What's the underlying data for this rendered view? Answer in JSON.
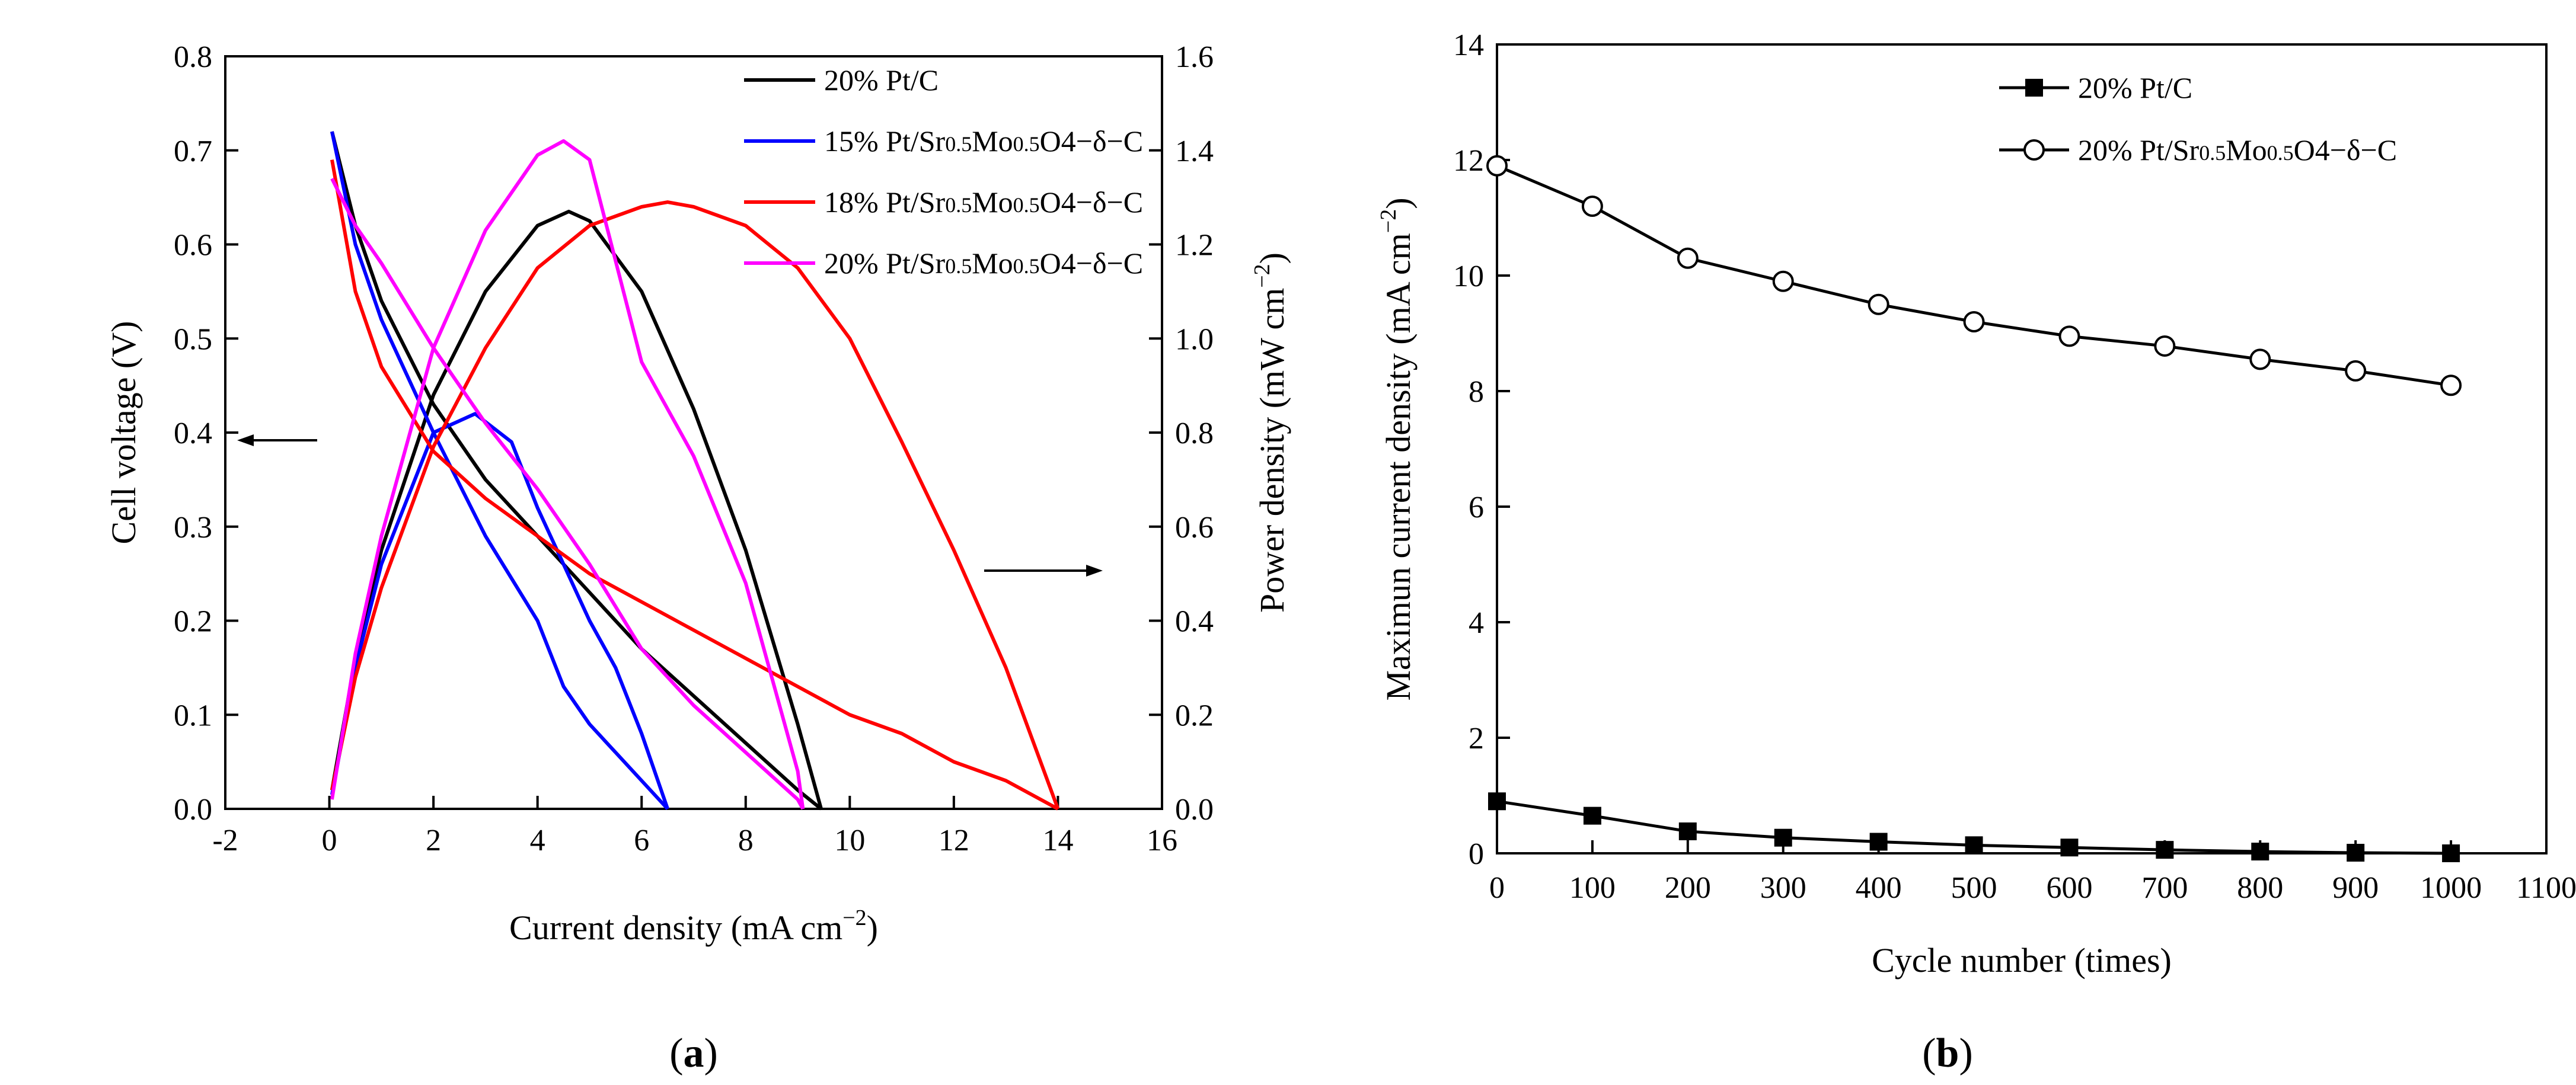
{
  "chart_data": [
    {
      "id": "a",
      "type": "line",
      "panel_label": "(a)",
      "panel_letter": "a",
      "xlabel": "Current density (mA cm",
      "xlabel_sup": "−2",
      "xlabel_close": ")",
      "ylabel_left": "Cell voltage (V)",
      "ylabel_right": "Power density (mW cm",
      "ylabel_right_sup": "−2",
      "ylabel_right_close": ")",
      "xlim": [
        -2,
        16
      ],
      "ylim_left": [
        0,
        0.8
      ],
      "ylim_right": [
        0,
        1.6
      ],
      "xticks": [
        "-2",
        "0",
        "2",
        "4",
        "6",
        "8",
        "10",
        "12",
        "14",
        "16"
      ],
      "yticks_left": [
        "0.0",
        "0.1",
        "0.2",
        "0.3",
        "0.4",
        "0.5",
        "0.6",
        "0.7",
        "0.8"
      ],
      "yticks_right": [
        "0.0",
        "0.2",
        "0.4",
        "0.6",
        "0.8",
        "1.0",
        "1.2",
        "1.4",
        "1.6"
      ],
      "legend_position": "top-right",
      "annotations": [
        "arrow pointing left to voltage axis",
        "arrow pointing right to power axis"
      ],
      "series": [
        {
          "name": "20% Pt/C",
          "legend_main": "20% Pt/C",
          "legend_parts": [],
          "color": "#000000",
          "voltage": [
            [
              0.05,
              0.72
            ],
            [
              0.5,
              0.62
            ],
            [
              1,
              0.54
            ],
            [
              2,
              0.43
            ],
            [
              3,
              0.35
            ],
            [
              4,
              0.29
            ],
            [
              5,
              0.23
            ],
            [
              6,
              0.17
            ],
            [
              7,
              0.12
            ],
            [
              8,
              0.07
            ],
            [
              9,
              0.02
            ],
            [
              9.45,
              0.0
            ]
          ],
          "power": [
            [
              0.05,
              0.04
            ],
            [
              0.5,
              0.32
            ],
            [
              1,
              0.55
            ],
            [
              2,
              0.88
            ],
            [
              3,
              1.1
            ],
            [
              4,
              1.24
            ],
            [
              4.6,
              1.27
            ],
            [
              5,
              1.25
            ],
            [
              6,
              1.1
            ],
            [
              7,
              0.85
            ],
            [
              8,
              0.55
            ],
            [
              9,
              0.18
            ],
            [
              9.45,
              0.0
            ]
          ]
        },
        {
          "name": "15% Pt/Sr0.5Mo0.5O4−δ−C",
          "legend_main": "15% Pt/Sr",
          "legend_parts": [
            "0.5",
            "Mo",
            "0.5",
            "O4−δ−C"
          ],
          "color": "#0000ff",
          "voltage": [
            [
              0.05,
              0.72
            ],
            [
              0.5,
              0.6
            ],
            [
              1,
              0.52
            ],
            [
              2,
              0.4
            ],
            [
              3,
              0.29
            ],
            [
              4,
              0.2
            ],
            [
              4.5,
              0.13
            ],
            [
              5,
              0.09
            ],
            [
              5.5,
              0.06
            ],
            [
              6,
              0.03
            ],
            [
              6.5,
              0.0
            ]
          ],
          "power": [
            [
              0.05,
              0.03
            ],
            [
              0.5,
              0.3
            ],
            [
              1,
              0.52
            ],
            [
              2,
              0.8
            ],
            [
              2.8,
              0.84
            ],
            [
              3.5,
              0.78
            ],
            [
              4,
              0.64
            ],
            [
              5,
              0.4
            ],
            [
              5.5,
              0.3
            ],
            [
              6,
              0.16
            ],
            [
              6.5,
              0.0
            ]
          ]
        },
        {
          "name": "18% Pt/Sr0.5Mo0.5O4−δ−C",
          "legend_main": "18% Pt/Sr",
          "legend_parts": [
            "0.5",
            "Mo",
            "0.5",
            "O4−δ−C"
          ],
          "color": "#ff0000",
          "voltage": [
            [
              0.05,
              0.69
            ],
            [
              0.5,
              0.55
            ],
            [
              1,
              0.47
            ],
            [
              2,
              0.38
            ],
            [
              3,
              0.33
            ],
            [
              4,
              0.29
            ],
            [
              5,
              0.25
            ],
            [
              6,
              0.22
            ],
            [
              7,
              0.19
            ],
            [
              8,
              0.16
            ],
            [
              9,
              0.13
            ],
            [
              10,
              0.1
            ],
            [
              11,
              0.08
            ],
            [
              12,
              0.05
            ],
            [
              13,
              0.03
            ],
            [
              14,
              0.0
            ]
          ],
          "power": [
            [
              0.05,
              0.04
            ],
            [
              0.5,
              0.28
            ],
            [
              1,
              0.47
            ],
            [
              2,
              0.77
            ],
            [
              3,
              0.98
            ],
            [
              4,
              1.15
            ],
            [
              5,
              1.24
            ],
            [
              6,
              1.28
            ],
            [
              6.5,
              1.29
            ],
            [
              7,
              1.28
            ],
            [
              8,
              1.24
            ],
            [
              9,
              1.15
            ],
            [
              10,
              1.0
            ],
            [
              11,
              0.78
            ],
            [
              12,
              0.55
            ],
            [
              13,
              0.3
            ],
            [
              14,
              0.0
            ]
          ]
        },
        {
          "name": "20% Pt/Sr0.5Mo0.5O4−δ−C",
          "legend_main": "20% Pt/Sr",
          "legend_parts": [
            "0.5",
            "Mo",
            "0.5",
            "O4−δ−C"
          ],
          "color": "#ff00ff",
          "voltage": [
            [
              0.05,
              0.67
            ],
            [
              0.5,
              0.62
            ],
            [
              1,
              0.58
            ],
            [
              2,
              0.49
            ],
            [
              3,
              0.41
            ],
            [
              4,
              0.34
            ],
            [
              5,
              0.26
            ],
            [
              6,
              0.17
            ],
            [
              7,
              0.11
            ],
            [
              8,
              0.06
            ],
            [
              9,
              0.01
            ],
            [
              9.1,
              0.0
            ]
          ],
          "power": [
            [
              0.05,
              0.02
            ],
            [
              0.5,
              0.33
            ],
            [
              1,
              0.58
            ],
            [
              2,
              0.98
            ],
            [
              3,
              1.23
            ],
            [
              4,
              1.39
            ],
            [
              4.5,
              1.42
            ],
            [
              5,
              1.38
            ],
            [
              6,
              0.95
            ],
            [
              7,
              0.75
            ],
            [
              8,
              0.48
            ],
            [
              9,
              0.08
            ],
            [
              9.1,
              0.0
            ]
          ]
        }
      ]
    },
    {
      "id": "b",
      "type": "line",
      "panel_label": "(b)",
      "panel_letter": "b",
      "xlabel": "Cycle number (times)",
      "ylabel": "Maximun current density (mA cm",
      "ylabel_sup": "−2",
      "ylabel_close": ")",
      "xlim": [
        0,
        1100
      ],
      "ylim": [
        0,
        14
      ],
      "xticks": [
        "0",
        "100",
        "200",
        "300",
        "400",
        "500",
        "600",
        "700",
        "800",
        "900",
        "1000",
        "1100"
      ],
      "yticks": [
        "0",
        "2",
        "4",
        "6",
        "8",
        "10",
        "12",
        "14"
      ],
      "legend_position": "top-right",
      "series": [
        {
          "name": "20% Pt/C",
          "legend_main": "20% Pt/C",
          "legend_parts": [],
          "marker": "filled-square",
          "color": "#000000",
          "x": [
            0,
            100,
            200,
            300,
            400,
            500,
            600,
            700,
            800,
            900,
            1000
          ],
          "y": [
            0.9,
            0.65,
            0.38,
            0.27,
            0.2,
            0.14,
            0.1,
            0.06,
            0.03,
            0.01,
            0.0
          ]
        },
        {
          "name": "20% Pt/Sr0.5Mo0.5O4−δ−C",
          "legend_main": "20% Pt/Sr",
          "legend_parts": [
            "0.5",
            "Mo",
            "0.5",
            "O4−δ−C"
          ],
          "marker": "open-circle",
          "color": "#000000",
          "x": [
            0,
            100,
            200,
            300,
            400,
            500,
            600,
            700,
            800,
            900,
            1000
          ],
          "y": [
            11.9,
            11.2,
            10.3,
            9.9,
            9.5,
            9.2,
            8.95,
            8.78,
            8.55,
            8.35,
            8.1
          ]
        }
      ]
    }
  ]
}
